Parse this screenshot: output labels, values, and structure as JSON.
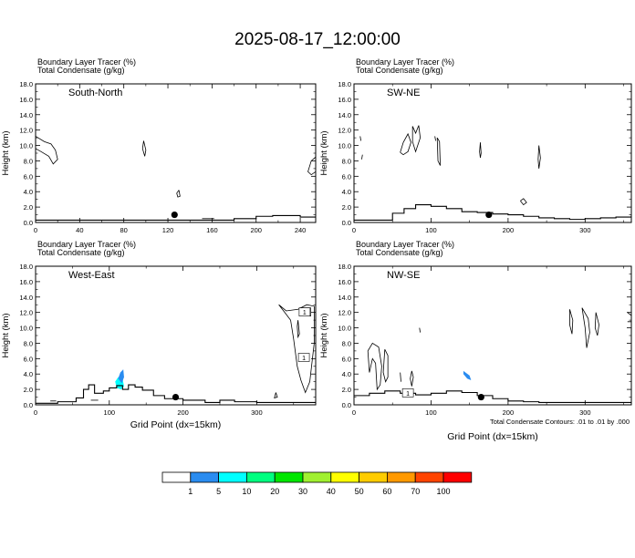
{
  "title": "2025-08-17_12:00:00",
  "footnote": "Total Condensate Contours: .01 to .01 by .000",
  "xlabel": "Grid Point (dx=15km)",
  "ylabel": "Height (km)",
  "colorbar": {
    "colors": [
      "#ffffff",
      "#2a8cf0",
      "#00ffff",
      "#00ff80",
      "#00e600",
      "#a0f030",
      "#ffff00",
      "#ffcc00",
      "#ff9900",
      "#ff4400",
      "#ff0000"
    ],
    "labels": [
      "1",
      "5",
      "10",
      "20",
      "30",
      "40",
      "50",
      "60",
      "70",
      "100"
    ]
  },
  "chart_data": [
    {
      "type": "contour",
      "label1": "Boundary Layer Tracer   (%)",
      "label2": "Total Condensate   (g/kg)",
      "section": "South-North",
      "xlim": [
        0,
        254
      ],
      "ylim": [
        0,
        18
      ],
      "xticks": [
        "0",
        "40",
        "80",
        "120",
        "160",
        "200",
        "240"
      ],
      "yticks": [
        "0.0",
        "2.0",
        "4.0",
        "6.0",
        "8.0",
        "10.0",
        "12.0",
        "14.0",
        "16.0",
        "18.0"
      ],
      "marker": {
        "x": 126,
        "y": 1.0
      },
      "terrain": [
        [
          0,
          0.3
        ],
        [
          100,
          0.3
        ],
        [
          160,
          0.3
        ],
        [
          180,
          0.5
        ],
        [
          200,
          0.8
        ],
        [
          215,
          0.9
        ],
        [
          240,
          0.7
        ],
        [
          254,
          0.7
        ]
      ],
      "contours": [
        [
          [
            0,
            11.2
          ],
          [
            8,
            10.5
          ],
          [
            14,
            10.2
          ],
          [
            18,
            9.4
          ],
          [
            20,
            8.2
          ],
          [
            16,
            7.6
          ],
          [
            12,
            8.6
          ],
          [
            5,
            9.2
          ],
          [
            0,
            9.6
          ]
        ],
        [
          [
            98,
            10.6
          ],
          [
            100,
            9.4
          ],
          [
            99,
            8.6
          ],
          [
            97,
            9.6
          ],
          [
            98,
            10.6
          ]
        ],
        [
          [
            130,
            4.2
          ],
          [
            131,
            3.4
          ],
          [
            129,
            3.3
          ],
          [
            128,
            3.8
          ],
          [
            130,
            4.2
          ]
        ],
        [
          [
            254,
            8.5
          ],
          [
            250,
            8.0
          ],
          [
            247,
            6.6
          ],
          [
            250,
            6.2
          ],
          [
            254,
            6.6
          ]
        ],
        [
          [
            151,
            0.5
          ],
          [
            162,
            0.5
          ]
        ]
      ],
      "shaded": []
    },
    {
      "type": "contour",
      "label1": "Boundary Layer Tracer   (%)",
      "label2": "Total Condensate   (g/kg)",
      "section": "SW-NE",
      "xlim": [
        0,
        360
      ],
      "ylim": [
        0,
        18
      ],
      "xticks": [
        "0",
        "100",
        "200",
        "300"
      ],
      "yticks": [
        "0.0",
        "2.0",
        "4.0",
        "6.0",
        "8.0",
        "10.0",
        "12.0",
        "14.0",
        "16.0",
        "18.0"
      ],
      "marker": {
        "x": 175,
        "y": 1.0
      },
      "terrain": [
        [
          0,
          0.3
        ],
        [
          40,
          0.3
        ],
        [
          50,
          1.2
        ],
        [
          65,
          1.8
        ],
        [
          80,
          2.3
        ],
        [
          100,
          2.1
        ],
        [
          120,
          1.8
        ],
        [
          140,
          1.4
        ],
        [
          160,
          1.3
        ],
        [
          180,
          1.1
        ],
        [
          200,
          1.0
        ],
        [
          220,
          0.8
        ],
        [
          240,
          0.6
        ],
        [
          260,
          0.5
        ],
        [
          280,
          0.4
        ],
        [
          300,
          0.5
        ],
        [
          320,
          0.6
        ],
        [
          340,
          0.7
        ],
        [
          360,
          0.9
        ]
      ],
      "contours": [
        [
          [
            60,
            9.1
          ],
          [
            64,
            10.4
          ],
          [
            70,
            11.5
          ],
          [
            74,
            10.4
          ],
          [
            70,
            9.2
          ],
          [
            64,
            8.8
          ],
          [
            60,
            9.1
          ]
        ],
        [
          [
            76,
            12.5
          ],
          [
            80,
            11.6
          ],
          [
            84,
            12.6
          ],
          [
            86,
            11.0
          ],
          [
            80,
            9.2
          ],
          [
            76,
            10.5
          ],
          [
            76,
            12.5
          ]
        ],
        [
          [
            108,
            11.0
          ],
          [
            111,
            10.5
          ],
          [
            112,
            7.4
          ],
          [
            109,
            8.0
          ],
          [
            108,
            11.0
          ]
        ],
        [
          [
            164,
            10.4
          ],
          [
            165,
            9.0
          ],
          [
            164,
            8.4
          ],
          [
            163,
            9.2
          ],
          [
            164,
            10.4
          ]
        ],
        [
          [
            240,
            10.0
          ],
          [
            242,
            8.4
          ],
          [
            240,
            7.0
          ],
          [
            239,
            8.2
          ],
          [
            240,
            10.0
          ]
        ],
        [
          [
            8,
            11.2
          ],
          [
            9,
            10.6
          ]
        ],
        [
          [
            105,
            11.2
          ],
          [
            106,
            10.6
          ]
        ],
        [
          [
            10,
            8.2
          ],
          [
            11,
            8.8
          ]
        ],
        [
          [
            216,
            2.8
          ],
          [
            220,
            3.1
          ],
          [
            224,
            2.6
          ],
          [
            220,
            2.3
          ],
          [
            216,
            2.8
          ]
        ]
      ],
      "shaded": []
    },
    {
      "type": "contour",
      "label1": "Boundary Layer Tracer   (%)",
      "label2": "Total Condensate   (g/kg)",
      "section": "West-East",
      "xlim": [
        0,
        380
      ],
      "ylim": [
        0,
        18
      ],
      "xticks": [
        "0",
        "100",
        "200",
        "300"
      ],
      "yticks": [
        "0.0",
        "2.0",
        "4.0",
        "6.0",
        "8.0",
        "10.0",
        "12.0",
        "14.0",
        "16.0",
        "18.0"
      ],
      "marker": {
        "x": 190,
        "y": 1.0
      },
      "boxed_labels": [
        {
          "text": "1",
          "x": 366,
          "y": 12.0
        },
        {
          "text": "1",
          "x": 364,
          "y": 6.1
        },
        {
          "text": "1",
          "x": 365,
          "y": 12.0
        }
      ],
      "terrain": [
        [
          0,
          0.2
        ],
        [
          30,
          0.4
        ],
        [
          55,
          0.9
        ],
        [
          65,
          2.0
        ],
        [
          72,
          2.6
        ],
        [
          80,
          1.5
        ],
        [
          92,
          1.8
        ],
        [
          100,
          2.2
        ],
        [
          110,
          2.5
        ],
        [
          118,
          2.0
        ],
        [
          126,
          2.6
        ],
        [
          135,
          2.3
        ],
        [
          145,
          1.9
        ],
        [
          160,
          1.2
        ],
        [
          175,
          0.8
        ],
        [
          200,
          0.6
        ],
        [
          230,
          0.3
        ],
        [
          250,
          0.6
        ],
        [
          270,
          0.4
        ],
        [
          300,
          0.3
        ],
        [
          330,
          0.3
        ],
        [
          360,
          0.3
        ],
        [
          380,
          0.3
        ]
      ],
      "contours": [
        [
          [
            330,
            13.0
          ],
          [
            340,
            12.2
          ],
          [
            356,
            12.4
          ],
          [
            368,
            13.0
          ],
          [
            378,
            12.8
          ],
          [
            378,
            8.0
          ],
          [
            372,
            3.0
          ],
          [
            366,
            1.6
          ],
          [
            360,
            3.2
          ],
          [
            355,
            5.0
          ],
          [
            350,
            8.6
          ],
          [
            346,
            11.0
          ],
          [
            338,
            12.0
          ],
          [
            330,
            13.0
          ]
        ],
        [
          [
            356,
            11.0
          ],
          [
            358,
            9.2
          ],
          [
            356,
            8.8
          ],
          [
            355,
            10.2
          ],
          [
            356,
            11.0
          ]
        ],
        [
          [
            326,
            1.6
          ],
          [
            328,
            1.0
          ],
          [
            324,
            0.9
          ],
          [
            326,
            1.6
          ]
        ],
        [
          [
            75,
            0.6
          ],
          [
            85,
            0.6
          ]
        ],
        [
          [
            20,
            0.5
          ],
          [
            28,
            0.5
          ]
        ]
      ],
      "shaded": [
        {
          "color": "#00ffff",
          "points": [
            [
              108,
              3.0
            ],
            [
              112,
              3.6
            ],
            [
              118,
              3.4
            ],
            [
              120,
              2.4
            ],
            [
              116,
              2.0
            ],
            [
              110,
              2.2
            ],
            [
              108,
              3.0
            ]
          ]
        },
        {
          "color": "#2a8cf0",
          "points": [
            [
              112,
              3.4
            ],
            [
              115,
              4.2
            ],
            [
              119,
              4.6
            ],
            [
              120,
              3.6
            ],
            [
              117,
              2.8
            ],
            [
              112,
              3.4
            ]
          ]
        }
      ]
    },
    {
      "type": "contour",
      "label1": "Boundary Layer Tracer   (%)",
      "label2": "Total Condensate   (g/kg)",
      "section": "NW-SE",
      "xlim": [
        0,
        360
      ],
      "ylim": [
        0,
        18
      ],
      "xticks": [
        "0",
        "100",
        "200",
        "300"
      ],
      "yticks": [
        "0.0",
        "2.0",
        "4.0",
        "6.0",
        "8.0",
        "10.0",
        "12.0",
        "14.0",
        "16.0",
        "18.0"
      ],
      "marker": {
        "x": 165,
        "y": 1.0
      },
      "boxed_labels": [
        {
          "text": "1",
          "x": 70,
          "y": 1.5
        }
      ],
      "terrain": [
        [
          0,
          1.2
        ],
        [
          20,
          1.5
        ],
        [
          40,
          1.8
        ],
        [
          60,
          1.5
        ],
        [
          80,
          1.3
        ],
        [
          100,
          1.5
        ],
        [
          120,
          1.8
        ],
        [
          140,
          1.6
        ],
        [
          160,
          1.2
        ],
        [
          180,
          0.8
        ],
        [
          200,
          0.5
        ],
        [
          220,
          0.4
        ],
        [
          240,
          0.3
        ],
        [
          270,
          0.3
        ],
        [
          300,
          0.3
        ],
        [
          330,
          0.3
        ],
        [
          360,
          0.3
        ]
      ],
      "contours": [
        [
          [
            18,
            7.0
          ],
          [
            24,
            8.0
          ],
          [
            32,
            7.5
          ],
          [
            36,
            5.0
          ],
          [
            34,
            2.6
          ],
          [
            30,
            2.0
          ],
          [
            28,
            5.4
          ],
          [
            24,
            6.0
          ],
          [
            20,
            4.2
          ],
          [
            18,
            7.0
          ]
        ],
        [
          [
            40,
            7.2
          ],
          [
            44,
            6.4
          ],
          [
            44,
            3.6
          ],
          [
            41,
            3.0
          ],
          [
            38,
            4.2
          ],
          [
            40,
            7.2
          ]
        ],
        [
          [
            296,
            12.6
          ],
          [
            304,
            11.2
          ],
          [
            306,
            9.4
          ],
          [
            302,
            7.4
          ],
          [
            300,
            10.0
          ],
          [
            296,
            12.6
          ]
        ],
        [
          [
            280,
            12.4
          ],
          [
            284,
            11.0
          ],
          [
            283,
            9.2
          ],
          [
            280,
            10.4
          ],
          [
            280,
            12.4
          ]
        ],
        [
          [
            314,
            12.0
          ],
          [
            318,
            10.4
          ],
          [
            316,
            9.0
          ],
          [
            313,
            10.0
          ],
          [
            314,
            12.0
          ]
        ],
        [
          [
            355,
            12.0
          ],
          [
            360,
            11.6
          ],
          [
            360,
            10.8
          ],
          [
            355,
            10.8
          ]
        ],
        [
          [
            75,
            4.4
          ],
          [
            77,
            3.6
          ],
          [
            75,
            2.4
          ],
          [
            73,
            3.4
          ],
          [
            75,
            4.4
          ]
        ],
        [
          [
            60,
            4.2
          ],
          [
            61,
            3.0
          ]
        ],
        [
          [
            85,
            10.0
          ],
          [
            86,
            9.4
          ]
        ]
      ],
      "shaded": [
        {
          "color": "#2a8cf0",
          "points": [
            [
              142,
              4.4
            ],
            [
              150,
              3.8
            ],
            [
              152,
              3.2
            ],
            [
              147,
              3.4
            ],
            [
              142,
              4.0
            ],
            [
              142,
              4.4
            ]
          ]
        }
      ]
    }
  ]
}
